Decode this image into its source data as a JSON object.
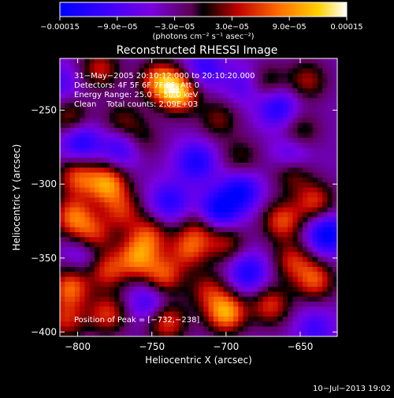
{
  "chart_data": {
    "type": "heatmap",
    "title": "Reconstructed RHESSI Image",
    "xlabel": "Heliocentric X (arcsec)",
    "ylabel": "Heliocentric Y (arcsec)",
    "xlim": [
      -812,
      -625
    ],
    "ylim": [
      -403,
      -215
    ],
    "x_ticks": [
      -800,
      -750,
      -700,
      -650
    ],
    "y_ticks": [
      -400,
      -350,
      -300,
      -250
    ],
    "x_tick_labels": [
      "−800",
      "−750",
      "−700",
      "−650"
    ],
    "y_tick_labels": [
      "−400",
      "−350",
      "−300",
      "−250"
    ],
    "colorbar": {
      "range": [
        -0.00015,
        0.00015
      ],
      "tick_labels": [
        "−0.00015",
        "−9.0e−05",
        "−3.0e−05",
        "3.0e−05",
        "9.0e−05",
        "0.00015"
      ],
      "label": "(photons cm⁻² s⁻¹ asec⁻²)"
    },
    "annotations": {
      "time_range": "31−May−2005 20:10:12.000 to 20:10:20.000",
      "detectors": "Detectors: 4F 5F 6F 7F 8F, Att 0",
      "energy_range": "Energy Range: 25.0 − 50.0 keV",
      "clean_counts": "Clean    Total counts: 2.09E+03",
      "peak": "Position of Peak = [−732,−238]"
    },
    "peak_position": [
      -732,
      -238
    ],
    "blobs": [
      {
        "x": -732,
        "y": -238,
        "v": 0.00015
      },
      {
        "x": -745,
        "y": -230,
        "v": 0.00011
      },
      {
        "x": -785,
        "y": -222,
        "v": 8e-05
      },
      {
        "x": -805,
        "y": -255,
        "v": 7e-05
      },
      {
        "x": -770,
        "y": -258,
        "v": 6e-05
      },
      {
        "x": -758,
        "y": -270,
        "v": 5e-05
      },
      {
        "x": -705,
        "y": -256,
        "v": 6e-05
      },
      {
        "x": -672,
        "y": -232,
        "v": 6e-05
      },
      {
        "x": -645,
        "y": -230,
        "v": 7e-05
      },
      {
        "x": -650,
        "y": -265,
        "v": 6e-05
      },
      {
        "x": -690,
        "y": -282,
        "v": 5e-05
      },
      {
        "x": -655,
        "y": -292,
        "v": 7e-05
      },
      {
        "x": -800,
        "y": -295,
        "v": 0.0001
      },
      {
        "x": -780,
        "y": -300,
        "v": 0.00013
      },
      {
        "x": -803,
        "y": -322,
        "v": 0.00011
      },
      {
        "x": -790,
        "y": -335,
        "v": 0.0001
      },
      {
        "x": -770,
        "y": -318,
        "v": 8e-05
      },
      {
        "x": -752,
        "y": -335,
        "v": 9e-05
      },
      {
        "x": -760,
        "y": -350,
        "v": 0.00011
      },
      {
        "x": -780,
        "y": -358,
        "v": 9e-05
      },
      {
        "x": -742,
        "y": -362,
        "v": 0.0001
      },
      {
        "x": -725,
        "y": -344,
        "v": 9e-05
      },
      {
        "x": -718,
        "y": -330,
        "v": 6e-05
      },
      {
        "x": -700,
        "y": -340,
        "v": 7e-05
      },
      {
        "x": -662,
        "y": -325,
        "v": 0.0001
      },
      {
        "x": -640,
        "y": -312,
        "v": 9e-05
      },
      {
        "x": -655,
        "y": -352,
        "v": 8e-05
      },
      {
        "x": -640,
        "y": -365,
        "v": 0.0001
      },
      {
        "x": -670,
        "y": -382,
        "v": 9e-05
      },
      {
        "x": -700,
        "y": -387,
        "v": 0.00014
      },
      {
        "x": -712,
        "y": -372,
        "v": 7e-05
      },
      {
        "x": -740,
        "y": -393,
        "v": 0.0001
      },
      {
        "x": -780,
        "y": -388,
        "v": 9e-05
      },
      {
        "x": -805,
        "y": -370,
        "v": 0.00011
      },
      {
        "x": -808,
        "y": -392,
        "v": 8e-05
      },
      {
        "x": -798,
        "y": -272,
        "v": -9e-05
      },
      {
        "x": -770,
        "y": -275,
        "v": -8e-05
      },
      {
        "x": -720,
        "y": -285,
        "v": -9e-05
      },
      {
        "x": -690,
        "y": -305,
        "v": -0.0001
      },
      {
        "x": -665,
        "y": -248,
        "v": -9e-05
      },
      {
        "x": -705,
        "y": -318,
        "v": -0.00011
      },
      {
        "x": -738,
        "y": -312,
        "v": -8e-05
      },
      {
        "x": -655,
        "y": -280,
        "v": -7e-05
      },
      {
        "x": -632,
        "y": -334,
        "v": -0.00012
      },
      {
        "x": -685,
        "y": -360,
        "v": -9e-05
      },
      {
        "x": -640,
        "y": -398,
        "v": -6e-05
      },
      {
        "x": -752,
        "y": -380,
        "v": -7e-05
      },
      {
        "x": -795,
        "y": -345,
        "v": -6e-05
      },
      {
        "x": -715,
        "y": -222,
        "v": -7e-05
      },
      {
        "x": -688,
        "y": -233,
        "v": -5e-05
      },
      {
        "x": -812,
        "y": -232,
        "v": -5e-05
      }
    ]
  },
  "footer": {
    "timestamp": "10−Jul−2013 19:02"
  }
}
